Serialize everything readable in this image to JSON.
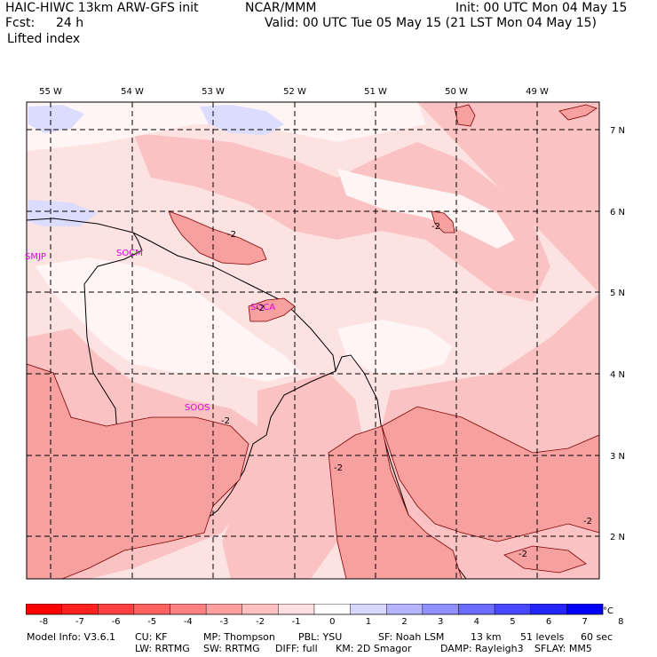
{
  "header": {
    "model": "HAIC-HIWC 13km ARW-GFS init",
    "org": "NCAR/MMM",
    "init": "Init: 00 UTC Mon 04 May 15",
    "fcst_label": "Fcst:",
    "fcst_value": "24 h",
    "valid": "Valid: 00 UTC Tue 05 May 15 (21 LST Mon 04 May 15)",
    "field": "Lifted index"
  },
  "map": {
    "lon_labels": [
      "55 W",
      "54 W",
      "53 W",
      "52 W",
      "51 W",
      "50 W",
      "49 W"
    ],
    "lat_labels": [
      "7 N",
      "6 N",
      "5 N",
      "4 N",
      "3 N",
      "2 N"
    ],
    "stations": [
      "SMJP",
      "SOCM",
      "SOCA",
      "SOOS"
    ],
    "contour_labels": [
      "-2",
      "-2",
      "-2",
      "-2",
      "-2",
      "-2",
      "-2"
    ],
    "colors": {
      "deep_pink": "#f6a0a0",
      "pink": "#fac2c2",
      "light_pink": "#fde2e2",
      "near_white": "#fff5f5",
      "light_blue": "#dcdcff",
      "station_color": "#e000e0"
    }
  },
  "colorbar": {
    "ticks": [
      "-8",
      "-7",
      "-6",
      "-5",
      "-4",
      "-3",
      "-2",
      "-1",
      "0",
      "1",
      "2",
      "3",
      "4",
      "5",
      "6",
      "7",
      "8"
    ],
    "unit": "°C",
    "colors": [
      "#ff0000",
      "#ff2020",
      "#ff4040",
      "#ff6060",
      "#ff8080",
      "#ffa0a0",
      "#ffc0c0",
      "#ffe0e0",
      "#ffffff",
      "#d8d8ff",
      "#b4b4ff",
      "#9090ff",
      "#6c6cff",
      "#4848ff",
      "#2424ff",
      "#0000ff"
    ]
  },
  "footer": {
    "line1": [
      "Model Info: V3.6.1",
      "CU: KF",
      "MP: Thompson",
      "PBL: YSU",
      "SF: Noah LSM",
      "13 km",
      "51 levels",
      "60 sec"
    ],
    "line2": [
      "LW: RRTMG",
      "SW: RRTMG",
      "DIFF: full",
      "KM: 2D Smagor",
      "DAMP: Rayleigh3",
      "SFLAY: MM5"
    ]
  }
}
